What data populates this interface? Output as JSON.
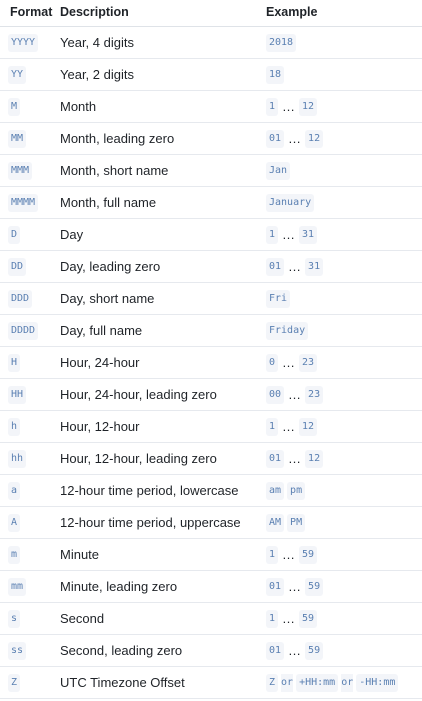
{
  "headers": {
    "format": "Format",
    "description": "Description",
    "example": "Example"
  },
  "rows": [
    {
      "format": "YYYY",
      "description": "Year, 4 digits",
      "ex": [
        "2018"
      ]
    },
    {
      "format": "YY",
      "description": "Year, 2 digits",
      "ex": [
        "18"
      ]
    },
    {
      "format": "M",
      "description": "Month",
      "ex": [
        "1",
        "…",
        "12"
      ]
    },
    {
      "format": "MM",
      "description": "Month, leading zero",
      "ex": [
        "01",
        "…",
        "12"
      ]
    },
    {
      "format": "MMM",
      "description": "Month, short name",
      "ex": [
        "Jan"
      ]
    },
    {
      "format": "MMMM",
      "description": "Month, full name",
      "ex": [
        "January"
      ]
    },
    {
      "format": "D",
      "description": "Day",
      "ex": [
        "1",
        "…",
        "31"
      ]
    },
    {
      "format": "DD",
      "description": "Day, leading zero",
      "ex": [
        "01",
        "…",
        "31"
      ]
    },
    {
      "format": "DDD",
      "description": "Day, short name",
      "ex": [
        "Fri"
      ]
    },
    {
      "format": "DDDD",
      "description": "Day, full name",
      "ex": [
        "Friday"
      ]
    },
    {
      "format": "H",
      "description": "Hour, 24-hour",
      "ex": [
        "0",
        "…",
        "23"
      ]
    },
    {
      "format": "HH",
      "description": "Hour, 24-hour, leading zero",
      "ex": [
        "00",
        "…",
        "23"
      ]
    },
    {
      "format": "h",
      "description": "Hour, 12-hour",
      "ex": [
        "1",
        "…",
        "12"
      ]
    },
    {
      "format": "hh",
      "description": "Hour, 12-hour, leading zero",
      "ex": [
        "01",
        "…",
        "12"
      ]
    },
    {
      "format": "a",
      "description": "12-hour time period, lowercase",
      "ex": [
        "am",
        "pm"
      ]
    },
    {
      "format": "A",
      "description": "12-hour time period, uppercase",
      "ex": [
        "AM",
        "PM"
      ]
    },
    {
      "format": "m",
      "description": "Minute",
      "ex": [
        "1",
        "…",
        "59"
      ]
    },
    {
      "format": "mm",
      "description": "Minute, leading zero",
      "ex": [
        "01",
        "…",
        "59"
      ]
    },
    {
      "format": "s",
      "description": "Second",
      "ex": [
        "1",
        "…",
        "59"
      ]
    },
    {
      "format": "ss",
      "description": "Second, leading zero",
      "ex": [
        "01",
        "…",
        "59"
      ]
    },
    {
      "format": "Z",
      "description": "UTC Timezone Offset",
      "ex": [
        "Z",
        "or",
        "+HH:mm",
        "or",
        "-HH:mm"
      ]
    }
  ]
}
